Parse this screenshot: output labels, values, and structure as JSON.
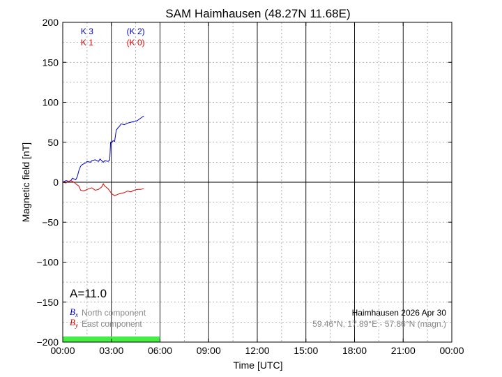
{
  "chart_data": {
    "type": "line",
    "title": "SAM Haimhausen (48.27N 11.68E)",
    "xlabel": "Time [UTC]",
    "ylabel": "Magnetic field [nT]",
    "xlim": [
      0,
      24
    ],
    "ylim": [
      -200,
      200
    ],
    "x_tick_labels": [
      "00:00",
      "03:00",
      "06:00",
      "09:00",
      "12:00",
      "15:00",
      "18:00",
      "21:00",
      "00:00"
    ],
    "y_ticks": [
      -200,
      -150,
      -100,
      -50,
      0,
      50,
      100,
      150,
      200
    ],
    "grid": true,
    "k_index": [
      {
        "label": "K 3",
        "color": "#0000cc",
        "x_hours": 1.5
      },
      {
        "label": "(K 2)",
        "color": "#0000cc",
        "x_hours": 4.5
      },
      {
        "label": "K 1",
        "color": "#dd0000",
        "x_hours": 1.5
      },
      {
        "label": "(K 0)",
        "color": "#dd0000",
        "x_hours": 4.5
      }
    ],
    "series": [
      {
        "color": "#0000cc",
        "x": [
          0,
          0.2,
          0.4,
          0.5,
          0.6,
          0.8,
          0.9,
          1.0,
          1.1,
          1.2,
          1.4,
          1.5,
          1.7,
          1.8,
          2.0,
          2.2,
          2.3,
          2.5,
          2.6,
          2.8,
          2.9,
          2.95,
          3.0,
          3.1,
          3.2,
          3.3,
          3.4,
          3.5,
          3.6,
          3.8,
          4.0,
          4.2,
          4.4,
          4.6,
          4.8,
          5.0
        ],
        "y": [
          0,
          2,
          1,
          2,
          5,
          3,
          7,
          15,
          20,
          22,
          24,
          26,
          25,
          27,
          28,
          26,
          29,
          25,
          27,
          26,
          28,
          50,
          49,
          52,
          51,
          65,
          68,
          70,
          73,
          72,
          74,
          75,
          76,
          77,
          80,
          83
        ]
      },
      {
        "color": "#dd0000",
        "x": [
          0,
          0.2,
          0.3,
          0.5,
          0.7,
          0.8,
          1.0,
          1.1,
          1.3,
          1.5,
          1.8,
          2.0,
          2.2,
          2.4,
          2.5,
          2.6,
          2.8,
          3.0,
          3.2,
          3.4,
          3.6,
          3.8,
          4.0,
          4.2,
          4.4,
          4.6,
          4.8,
          5.0
        ],
        "y": [
          0,
          -1,
          1,
          2,
          0,
          -2,
          -5,
          -10,
          -11,
          -9,
          -7,
          -10,
          -9,
          -6,
          -2,
          -5,
          -8,
          -14,
          -17,
          -15,
          -14,
          -13,
          -11,
          -12,
          -10,
          -9,
          -9,
          -8
        ]
      }
    ],
    "stat_label": "A=11.0",
    "legend": [
      {
        "symbol_base": "B",
        "symbol_sub": "x",
        "text": "North component",
        "color": "#0000cc"
      },
      {
        "symbol_base": "B",
        "symbol_sub": "y",
        "text": "East component",
        "color": "#dd0000"
      }
    ],
    "station_info": "Haimhausen 2026 Apr 30",
    "coord_info": "59.46°N, 17.89°E - 57.86°N (magn.)",
    "coverage": {
      "start_hours": 0,
      "end_hours": 6,
      "color": "#44ee44"
    }
  }
}
